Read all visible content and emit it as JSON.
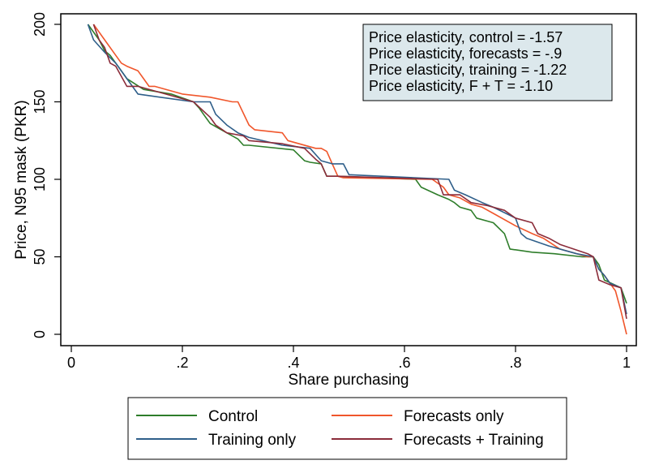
{
  "chart_data": {
    "type": "line",
    "xlabel": "Share purchasing",
    "ylabel": "Price, N95 mask (PKR)",
    "xlim": [
      0,
      1
    ],
    "ylim": [
      0,
      200
    ],
    "xticks": [
      {
        "value": 0,
        "label": "0"
      },
      {
        "value": 0.2,
        "label": ".2"
      },
      {
        "value": 0.4,
        "label": ".4"
      },
      {
        "value": 0.6,
        "label": ".6"
      },
      {
        "value": 0.8,
        "label": ".8"
      },
      {
        "value": 1,
        "label": "1"
      }
    ],
    "yticks": [
      {
        "value": 0,
        "label": "0"
      },
      {
        "value": 50,
        "label": "50"
      },
      {
        "value": 100,
        "label": "100"
      },
      {
        "value": 150,
        "label": "150"
      },
      {
        "value": 200,
        "label": "200"
      }
    ],
    "grid": false,
    "annotation": {
      "lines": [
        "Price elasticity, control = -1.57",
        "Price elasticity, forecasts = -.9",
        "Price elasticity, training = -1.22",
        "Price elasticity, F + T = -1.10"
      ],
      "fill": "#dce8ec"
    },
    "legend": {
      "placement": "bottom",
      "columns": 2
    },
    "series": [
      {
        "name": "Control",
        "color": "#2e7d2a",
        "x": [
          0.03,
          0.05,
          0.06,
          0.07,
          0.08,
          0.09,
          0.1,
          0.13,
          0.18,
          0.22,
          0.23,
          0.24,
          0.25,
          0.27,
          0.3,
          0.31,
          0.32,
          0.4,
          0.42,
          0.43,
          0.45,
          0.46,
          0.48,
          0.62,
          0.63,
          0.66,
          0.68,
          0.69,
          0.7,
          0.72,
          0.73,
          0.75,
          0.76,
          0.78,
          0.79,
          0.83,
          0.87,
          0.92,
          0.94,
          0.95,
          0.96,
          0.99,
          1.0
        ],
        "y": [
          200,
          190,
          183,
          180,
          175,
          170,
          165,
          158,
          155,
          150,
          146,
          141,
          136,
          132,
          126,
          122,
          122,
          119,
          112,
          111,
          110,
          102,
          102,
          100,
          95,
          90,
          87,
          85,
          82,
          80,
          75,
          73,
          72,
          65,
          55,
          53,
          52,
          50,
          50,
          45,
          35,
          30,
          20
        ]
      },
      {
        "name": "Forecasts only",
        "color": "#f0562b",
        "x": [
          0.04,
          0.05,
          0.06,
          0.08,
          0.09,
          0.1,
          0.12,
          0.13,
          0.14,
          0.15,
          0.2,
          0.25,
          0.29,
          0.3,
          0.32,
          0.33,
          0.38,
          0.39,
          0.44,
          0.45,
          0.46,
          0.47,
          0.48,
          0.49,
          0.65,
          0.67,
          0.68,
          0.7,
          0.72,
          0.74,
          0.76,
          0.8,
          0.83,
          0.85,
          0.88,
          0.93,
          0.94,
          0.95,
          0.96,
          0.98,
          0.99,
          1.0
        ],
        "y": [
          200,
          195,
          190,
          180,
          175,
          173,
          170,
          165,
          160,
          160,
          155,
          153,
          150,
          150,
          135,
          132,
          130,
          125,
          120,
          120,
          118,
          110,
          102,
          101,
          100,
          95,
          90,
          88,
          84,
          82,
          78,
          70,
          65,
          62,
          55,
          50,
          50,
          42,
          38,
          28,
          15,
          0
        ]
      },
      {
        "name": "Training only",
        "color": "#2f5f8a",
        "x": [
          0.03,
          0.04,
          0.06,
          0.08,
          0.1,
          0.12,
          0.16,
          0.22,
          0.25,
          0.26,
          0.28,
          0.3,
          0.32,
          0.38,
          0.43,
          0.45,
          0.47,
          0.49,
          0.5,
          0.68,
          0.69,
          0.71,
          0.74,
          0.76,
          0.8,
          0.81,
          0.82,
          0.86,
          0.91,
          0.94,
          0.95,
          0.96,
          0.97,
          0.99,
          1.0
        ],
        "y": [
          200,
          190,
          182,
          175,
          165,
          155,
          153,
          150,
          150,
          142,
          135,
          130,
          127,
          122,
          120,
          112,
          110,
          110,
          103,
          100,
          93,
          90,
          85,
          82,
          75,
          65,
          62,
          57,
          52,
          50,
          42,
          38,
          33,
          30,
          13
        ]
      },
      {
        "name": "Forecasts + Training",
        "color": "#8b2c3a",
        "x": [
          0.04,
          0.05,
          0.06,
          0.07,
          0.08,
          0.1,
          0.12,
          0.17,
          0.22,
          0.25,
          0.26,
          0.28,
          0.31,
          0.32,
          0.38,
          0.42,
          0.44,
          0.45,
          0.46,
          0.47,
          0.48,
          0.66,
          0.67,
          0.7,
          0.72,
          0.75,
          0.78,
          0.8,
          0.83,
          0.84,
          0.86,
          0.88,
          0.93,
          0.94,
          0.95,
          0.97,
          0.99,
          1.0
        ],
        "y": [
          200,
          190,
          185,
          175,
          173,
          160,
          160,
          155,
          150,
          140,
          135,
          130,
          128,
          125,
          123,
          120,
          113,
          110,
          102,
          102,
          102,
          100,
          90,
          90,
          85,
          83,
          80,
          75,
          72,
          65,
          62,
          58,
          52,
          50,
          35,
          32,
          30,
          10
        ]
      }
    ]
  }
}
